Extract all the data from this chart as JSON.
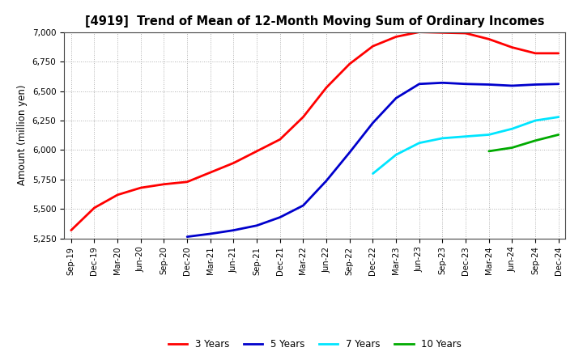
{
  "title": "[4919]  Trend of Mean of 12-Month Moving Sum of Ordinary Incomes",
  "ylabel": "Amount (million yen)",
  "ylim": [
    5250,
    7000
  ],
  "yticks": [
    5250,
    5500,
    5750,
    6000,
    6250,
    6500,
    6750,
    7000
  ],
  "background_color": "#ffffff",
  "plot_bg_color": "#ffffff",
  "grid_color": "#b0b0b0",
  "x_labels": [
    "Sep-19",
    "Dec-19",
    "Mar-20",
    "Jun-20",
    "Sep-20",
    "Dec-20",
    "Mar-21",
    "Jun-21",
    "Sep-21",
    "Dec-21",
    "Mar-22",
    "Jun-22",
    "Sep-22",
    "Dec-22",
    "Mar-23",
    "Jun-23",
    "Sep-23",
    "Dec-23",
    "Mar-24",
    "Jun-24",
    "Sep-24",
    "Dec-24"
  ],
  "series": {
    "3 Years": {
      "color": "#ff0000",
      "data_x": [
        0,
        1,
        2,
        3,
        4,
        5,
        6,
        7,
        8,
        9,
        10,
        11,
        12,
        13,
        14,
        15,
        16,
        17,
        18,
        19,
        20,
        21
      ],
      "data_y": [
        5320,
        5510,
        5620,
        5680,
        5710,
        5730,
        5810,
        5890,
        5990,
        6090,
        6280,
        6530,
        6730,
        6880,
        6960,
        7000,
        6995,
        6990,
        6940,
        6870,
        6820,
        6820
      ]
    },
    "5 Years": {
      "color": "#0000cc",
      "data_x": [
        5,
        6,
        7,
        8,
        9,
        10,
        11,
        12,
        13,
        14,
        15,
        16,
        17,
        18,
        19,
        20,
        21
      ],
      "data_y": [
        5265,
        5290,
        5320,
        5360,
        5430,
        5530,
        5740,
        5980,
        6230,
        6440,
        6560,
        6570,
        6560,
        6555,
        6545,
        6555,
        6560
      ]
    },
    "7 Years": {
      "color": "#00e5ff",
      "data_x": [
        13,
        14,
        15,
        16,
        17,
        18,
        19,
        20,
        21
      ],
      "data_y": [
        5800,
        5960,
        6060,
        6100,
        6115,
        6130,
        6180,
        6250,
        6280
      ]
    },
    "10 Years": {
      "color": "#00aa00",
      "data_x": [
        18,
        19,
        20,
        21
      ],
      "data_y": [
        5990,
        6020,
        6080,
        6130
      ]
    }
  },
  "legend_labels": [
    "3 Years",
    "5 Years",
    "7 Years",
    "10 Years"
  ],
  "legend_colors": [
    "#ff0000",
    "#0000cc",
    "#00e5ff",
    "#00aa00"
  ]
}
